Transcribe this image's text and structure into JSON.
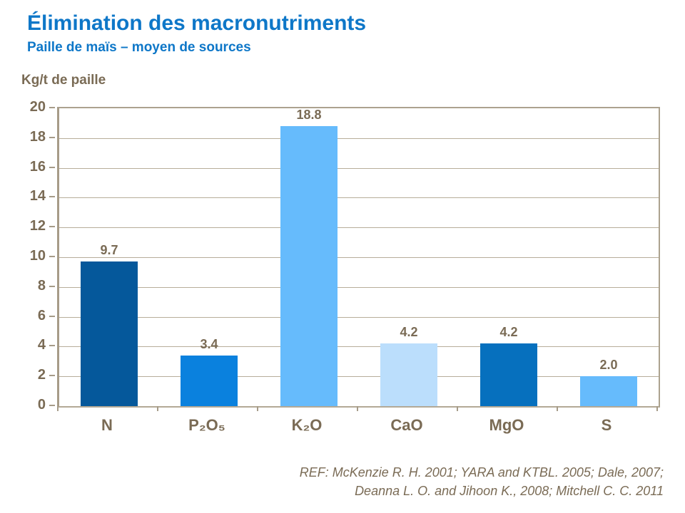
{
  "header": {
    "title": "Élimination des macronutriments",
    "subtitle": "Paille  de maïs – moyen de sources"
  },
  "axis_unit_label": "Kg/t de paille",
  "footer": {
    "line1": "REF: McKenzie R. H. 2001; YARA and KTBL. 2005; Dale, 2007;",
    "line2": "Deanna L. O. and Jihoon K.,  2008; Mitchell C. C. 2011"
  },
  "colors": {
    "title_blue": "#0e77c8",
    "text_brown": "#7a6b55",
    "gridline": "#b7ad9a",
    "axis": "#a69b88",
    "background": "#ffffff"
  },
  "chart_data": {
    "type": "bar",
    "title": "Élimination des macronutriments",
    "subtitle": "Paille  de maïs – moyen de sources",
    "ylabel": "Kg/t de paille",
    "xlabel": "",
    "categories": [
      "N",
      "P₂O₅",
      "K₂O",
      "CaO",
      "MgO",
      "S"
    ],
    "values": [
      9.7,
      3.4,
      18.8,
      4.2,
      4.2,
      2.0
    ],
    "value_labels": [
      "9.7",
      "3.4",
      "18.8",
      "4.2",
      "4.2",
      "2.0"
    ],
    "bar_colors": [
      "#05589b",
      "#0a81de",
      "#66bbfc",
      "#bbdefc",
      "#0670be",
      "#66bbfc"
    ],
    "ylim": [
      0,
      20
    ],
    "ytick_step": 2,
    "grid": true,
    "legend": false
  }
}
